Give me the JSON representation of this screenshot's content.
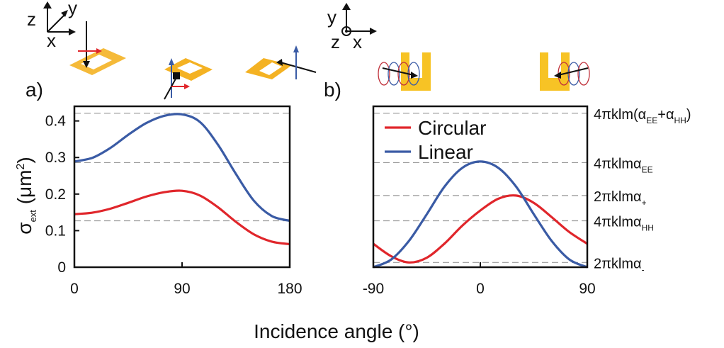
{
  "panel_labels": {
    "a": "a)",
    "b": "b)"
  },
  "axes_icons": {
    "a": {
      "z": "z",
      "y": "y",
      "x": "x"
    },
    "b": {
      "y": "y",
      "z": "z",
      "x": "x"
    }
  },
  "y_axis_label": {
    "main": "σ",
    "sub": "ext",
    "unit_open": " (μm",
    "unit_sup": "2",
    "unit_close": ")"
  },
  "x_axis_label": "Incidence angle (°)",
  "right_labels": [
    {
      "pre": "4πklm(α",
      "s1": "EE",
      "mid": "+α",
      "s2": "HH",
      "post": ")"
    },
    {
      "pre": "4πklmα",
      "s1": "EE"
    },
    {
      "pre": "2πklmα",
      "s1": "+"
    },
    {
      "pre": "4πklmα",
      "s1": "HH"
    },
    {
      "pre": "2πklmα",
      "s1": "-"
    }
  ],
  "colors": {
    "circular": "#e0262b",
    "linear": "#3a5ba5",
    "gold": "#f3b31f",
    "grid": "#999999"
  },
  "chart_data": [
    {
      "panel": "a",
      "type": "line",
      "xlim": [
        0,
        180
      ],
      "ylim": [
        0,
        0.44
      ],
      "xticks": [
        "0",
        "90",
        "180"
      ],
      "yticks": [
        "0",
        "0.1",
        "0.2",
        "0.3",
        "0.4"
      ],
      "grid": "dashed horizontal at 0.127, 0.286, 0.421",
      "series": [
        {
          "color": "red",
          "x": [
            0,
            15,
            30,
            45,
            60,
            75,
            90,
            105,
            120,
            135,
            150,
            165,
            180
          ],
          "y": [
            0.145,
            0.149,
            0.16,
            0.176,
            0.193,
            0.205,
            0.209,
            0.196,
            0.164,
            0.124,
            0.09,
            0.07,
            0.063
          ]
        },
        {
          "color": "blue",
          "x": [
            0,
            15,
            30,
            45,
            60,
            75,
            90,
            105,
            120,
            135,
            150,
            165,
            180
          ],
          "y": [
            0.289,
            0.299,
            0.326,
            0.362,
            0.394,
            0.414,
            0.418,
            0.397,
            0.335,
            0.255,
            0.182,
            0.14,
            0.127
          ]
        }
      ]
    },
    {
      "panel": "b",
      "type": "line",
      "xlim": [
        -90,
        90
      ],
      "ylim": [
        0,
        0.44
      ],
      "xticks": [
        "-90",
        "0",
        "90"
      ],
      "grid": "dashed horizontal at reference levels",
      "series": [
        {
          "name": "Circular",
          "color": "red",
          "x": [
            -90,
            -75,
            -60,
            -45,
            -30,
            -15,
            0,
            15,
            30,
            45,
            60,
            75,
            90
          ],
          "y": [
            0.064,
            0.03,
            0.013,
            0.026,
            0.065,
            0.114,
            0.155,
            0.187,
            0.196,
            0.176,
            0.137,
            0.096,
            0.064
          ]
        },
        {
          "name": "Linear",
          "color": "blue",
          "x": [
            -90,
            -75,
            -60,
            -45,
            -30,
            -15,
            0,
            15,
            30,
            45,
            60,
            75,
            90
          ],
          "y": [
            0.0,
            0.021,
            0.072,
            0.145,
            0.221,
            0.272,
            0.289,
            0.272,
            0.221,
            0.145,
            0.072,
            0.021,
            0.0
          ]
        }
      ],
      "ref_levels": [
        0.421,
        0.286,
        0.196,
        0.127,
        0.013
      ]
    }
  ]
}
